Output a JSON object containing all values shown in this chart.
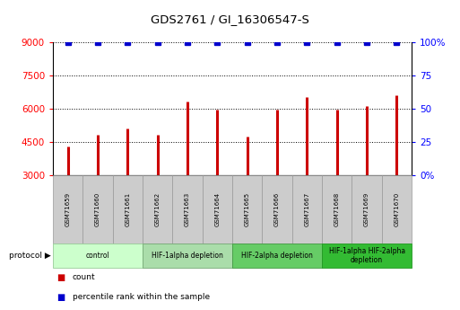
{
  "title": "GDS2761 / GI_16306547-S",
  "samples": [
    "GSM71659",
    "GSM71660",
    "GSM71661",
    "GSM71662",
    "GSM71663",
    "GSM71664",
    "GSM71665",
    "GSM71666",
    "GSM71667",
    "GSM71668",
    "GSM71669",
    "GSM71670"
  ],
  "counts": [
    4300,
    4800,
    5100,
    4800,
    6300,
    5950,
    4750,
    5950,
    6500,
    5950,
    6100,
    6600
  ],
  "percentile_ranks": [
    100,
    100,
    100,
    100,
    100,
    100,
    100,
    100,
    100,
    100,
    100,
    100
  ],
  "bar_color": "#cc0000",
  "dot_color": "#0000cc",
  "ylim_left": [
    3000,
    9000
  ],
  "ylim_right": [
    0,
    100
  ],
  "yticks_left": [
    3000,
    4500,
    6000,
    7500,
    9000
  ],
  "yticks_right": [
    0,
    25,
    50,
    75,
    100
  ],
  "groups": [
    {
      "label": "control",
      "start": 0,
      "end": 3,
      "color": "#ccffcc",
      "border": "#99cc99"
    },
    {
      "label": "HIF-1alpha depletion",
      "start": 3,
      "end": 6,
      "color": "#aaddaa",
      "border": "#77aa77"
    },
    {
      "label": "HIF-2alpha depletion",
      "start": 6,
      "end": 9,
      "color": "#66cc66",
      "border": "#449944"
    },
    {
      "label": "HIF-1alpha HIF-2alpha\ndepletion",
      "start": 9,
      "end": 12,
      "color": "#33bb33",
      "border": "#229922"
    }
  ],
  "legend_count_label": "count",
  "legend_pct_label": "percentile rank within the sample",
  "sample_box_color": "#cccccc",
  "sample_box_border": "#999999",
  "protocol_arrow": "▶"
}
